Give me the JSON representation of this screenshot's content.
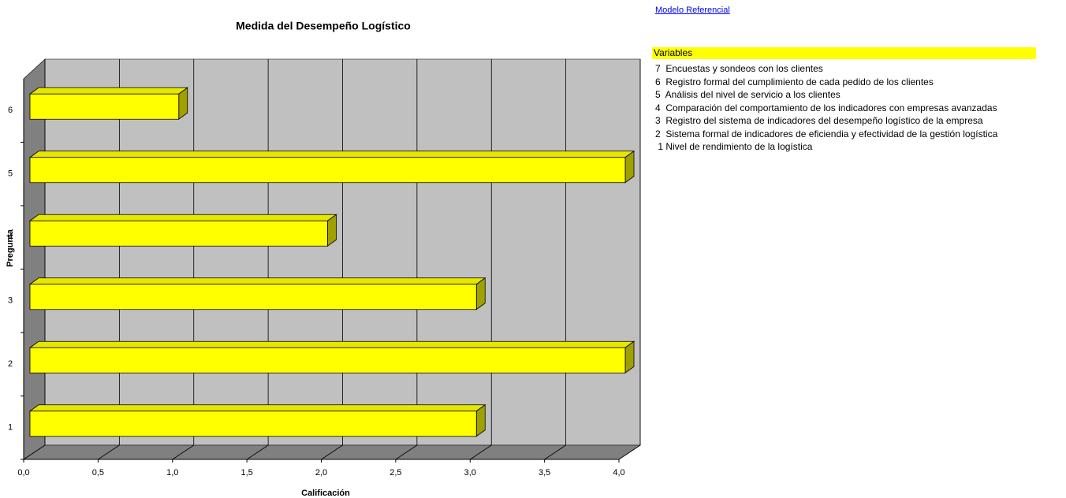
{
  "chart_data": {
    "type": "bar3d_horizontal",
    "title": "Medida del Desempeño Logístico",
    "x_label": "Calificación",
    "y_label": "Pregunta",
    "categories": [
      "1",
      "2",
      "3",
      "4",
      "5",
      "6"
    ],
    "values": [
      3,
      4,
      3,
      2,
      4,
      1
    ],
    "color": "#ffff00",
    "xlim": [
      0,
      4
    ],
    "xticks": [
      {
        "value": 0,
        "label": "0,0"
      },
      {
        "value": 0.5,
        "label": "0,5"
      },
      {
        "value": 1,
        "label": "1,0"
      },
      {
        "value": 1.5,
        "label": "1,5"
      },
      {
        "value": 2,
        "label": "2,0"
      },
      {
        "value": 2.5,
        "label": "2,5"
      },
      {
        "value": 3,
        "label": "3,0"
      },
      {
        "value": 3.5,
        "label": "3,5"
      },
      {
        "value": 4,
        "label": "4,0"
      }
    ],
    "grid": true
  },
  "link": "Modelo Referencial",
  "variables": {
    "header": "Variables",
    "items": [
      "7  Encuestas y sondeos con los clientes",
      "6  Registro formal del cumplimiento de cada pedido de los clientes",
      "5  Análisis del nivel de servicio a los clientes",
      "4  Comparación del comportamiento de los indicadores con empresas avanzadas",
      "3  Registro del sistema de indicadores del desempeño logístico de la empresa",
      "2  Sistema formal de indicadores de eficiendia y efectividad de la gestión logística",
      " 1 Nivel de rendimiento de la logística"
    ]
  }
}
